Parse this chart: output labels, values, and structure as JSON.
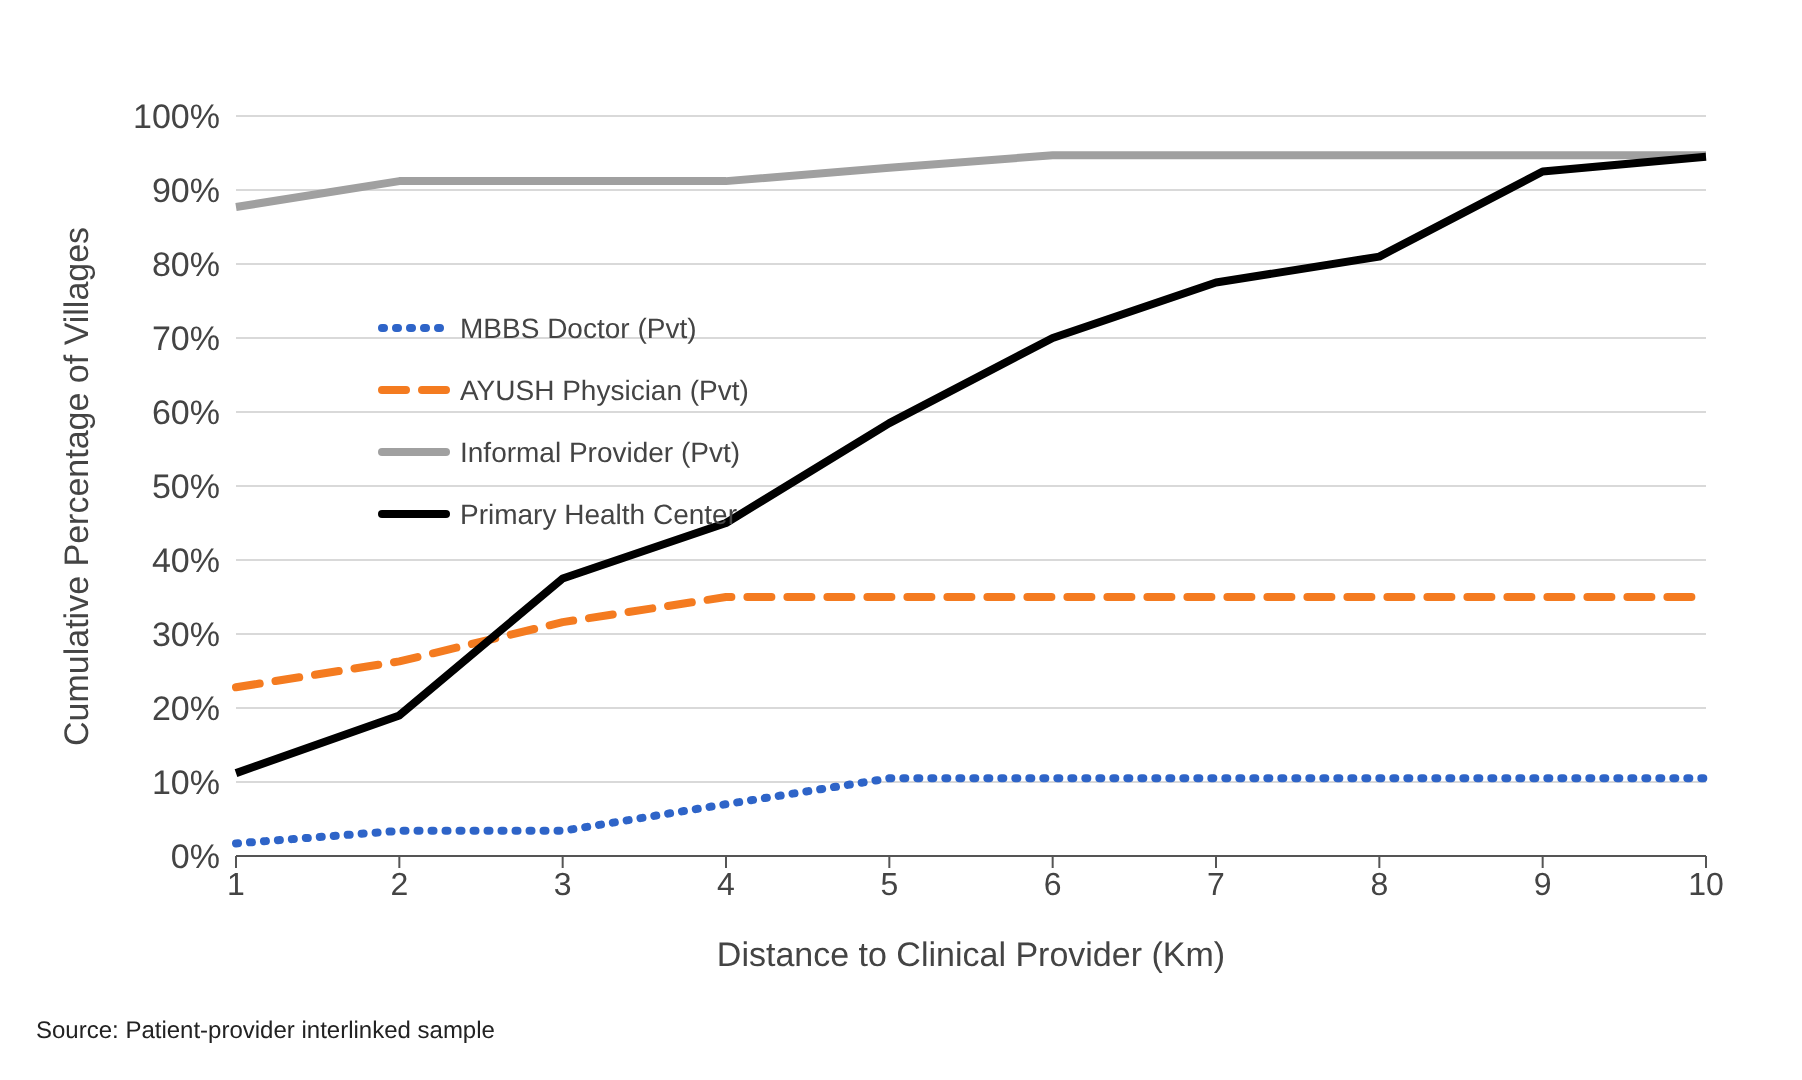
{
  "chart_data": {
    "type": "line",
    "xlabel": "Distance to Clinical Provider (Km)",
    "ylabel": "Cumulative Percentage of Villages",
    "categories": [
      "1",
      "2",
      "3",
      "4",
      "5",
      "6",
      "7",
      "8",
      "9",
      "10"
    ],
    "series": [
      {
        "name": "MBBS Doctor (Pvt)",
        "color": "#2e64c8",
        "line_style": "dotted",
        "values": [
          1.7,
          3.4,
          3.4,
          7,
          10.5,
          10.5,
          10.5,
          10.5,
          10.5,
          10.5
        ]
      },
      {
        "name": "AYUSH Physician (Pvt)",
        "color": "#f47b20",
        "line_style": "dashed",
        "values": [
          22.8,
          26.3,
          31.6,
          35,
          35,
          35,
          35,
          35,
          35,
          35
        ]
      },
      {
        "name": "Informal Provider (Pvt)",
        "color": "#a0a0a0",
        "line_style": "solid",
        "values": [
          87.7,
          91.2,
          91.2,
          91.2,
          93,
          94.7,
          94.7,
          94.7,
          94.7,
          94.7
        ]
      },
      {
        "name": "Primary Health Center",
        "color": "#000000",
        "line_style": "solid",
        "values": [
          11.2,
          19,
          37.5,
          45,
          58.5,
          70,
          77.5,
          81,
          92.5,
          94.5
        ]
      }
    ],
    "ylim": [
      0,
      100
    ],
    "yticks": [
      {
        "value": 0,
        "label": "0%"
      },
      {
        "value": 10,
        "label": "10%"
      },
      {
        "value": 20,
        "label": "20%"
      },
      {
        "value": 30,
        "label": "30%"
      },
      {
        "value": 40,
        "label": "40%"
      },
      {
        "value": 50,
        "label": "50%"
      },
      {
        "value": 60,
        "label": "60%"
      },
      {
        "value": 70,
        "label": "70%"
      },
      {
        "value": 80,
        "label": "80%"
      },
      {
        "value": 90,
        "label": "90%"
      },
      {
        "value": 100,
        "label": "100%"
      }
    ],
    "grid": "y",
    "legend": "left",
    "marker": "none",
    "annotations": [
      "Source: Patient-provider interlinked sample"
    ]
  }
}
